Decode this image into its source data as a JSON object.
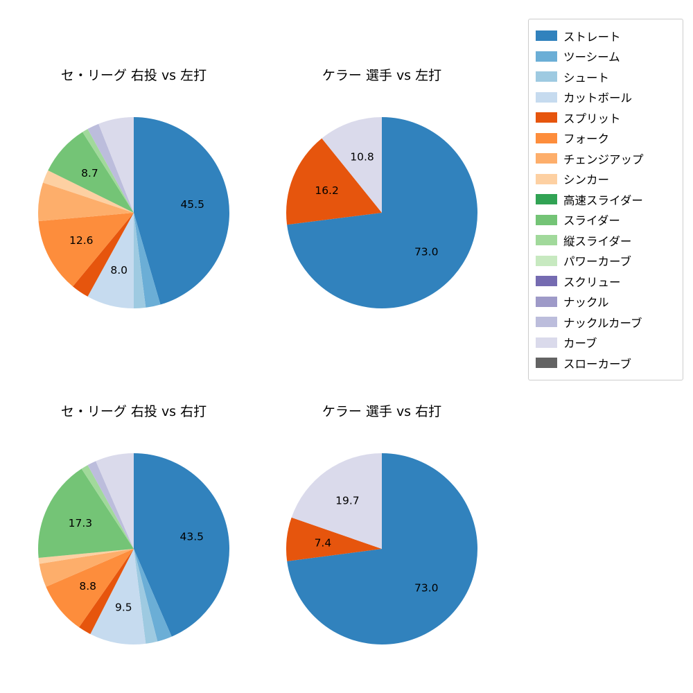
{
  "page": {
    "background": "#ffffff"
  },
  "palette": {
    "ストレート": "#3182bd",
    "ツーシーム": "#6baed6",
    "シュート": "#9ecae1",
    "カットボール": "#c6dbef",
    "スプリット": "#e6550d",
    "フォーク": "#fd8d3c",
    "チェンジアップ": "#fdae6b",
    "シンカー": "#fdd0a2",
    "高速スライダー": "#31a354",
    "スライダー": "#74c476",
    "縦スライダー": "#a1d99b",
    "パワーカーブ": "#c7e9c0",
    "スクリュー": "#756bb1",
    "ナックル": "#9e9ac8",
    "ナックルカーブ": "#bcbddc",
    "カーブ": "#dadaeb",
    "スローカーブ": "#636363"
  },
  "legend": {
    "items": [
      "ストレート",
      "ツーシーム",
      "シュート",
      "カットボール",
      "スプリット",
      "フォーク",
      "チェンジアップ",
      "シンカー",
      "高速スライダー",
      "スライダー",
      "縦スライダー",
      "パワーカーブ",
      "スクリュー",
      "ナックル",
      "ナックルカーブ",
      "カーブ",
      "スローカーブ"
    ]
  },
  "chart_data": [
    {
      "type": "pie",
      "title": "セ・リーグ 右投 vs 左打",
      "labels": [
        "ストレート",
        "ツーシーム",
        "シュート",
        "カットボール",
        "スプリット",
        "フォーク",
        "チェンジアップ",
        "シンカー",
        "スライダー",
        "縦スライダー",
        "ナックルカーブ",
        "カーブ"
      ],
      "values": [
        45.5,
        2.5,
        2.0,
        8.0,
        3.0,
        12.6,
        6.5,
        2.2,
        8.7,
        1.0,
        2.0,
        6.0
      ],
      "visible_value_labels": [
        45.5,
        8.0,
        12.6,
        8.7
      ],
      "start_angle": "top",
      "direction": "clockwise",
      "min_pct_for_label": 7.0,
      "legend_position": "outside-right",
      "grid": false
    },
    {
      "type": "pie",
      "title": "ケラー 選手 vs 左打",
      "labels": [
        "ストレート",
        "スプリット",
        "カーブ"
      ],
      "values": [
        73.0,
        16.2,
        10.8
      ],
      "visible_value_labels": [
        73.0,
        16.2,
        10.8
      ],
      "start_angle": "top",
      "direction": "clockwise",
      "min_pct_for_label": 7.0,
      "legend_position": "outside-right",
      "grid": false
    },
    {
      "type": "pie",
      "title": "セ・リーグ 右投 vs 右打",
      "labels": [
        "ストレート",
        "ツーシーム",
        "シュート",
        "カットボール",
        "スプリット",
        "フォーク",
        "チェンジアップ",
        "シンカー",
        "スライダー",
        "縦スライダー",
        "ナックルカーブ",
        "カーブ"
      ],
      "values": [
        43.5,
        2.5,
        2.0,
        9.5,
        2.2,
        8.8,
        4.0,
        1.0,
        17.3,
        1.2,
        1.5,
        6.5
      ],
      "visible_value_labels": [
        43.5,
        9.5,
        8.8,
        17.3
      ],
      "start_angle": "top",
      "direction": "clockwise",
      "min_pct_for_label": 7.0,
      "legend_position": "outside-right",
      "grid": false
    },
    {
      "type": "pie",
      "title": "ケラー 選手 vs 右打",
      "labels": [
        "ストレート",
        "スプリット",
        "カーブ"
      ],
      "values": [
        73.0,
        7.4,
        19.7
      ],
      "visible_value_labels": [
        73.0,
        7.4,
        19.7
      ],
      "start_angle": "top",
      "direction": "clockwise",
      "min_pct_for_label": 7.0,
      "legend_position": "outside-right",
      "grid": false
    }
  ]
}
